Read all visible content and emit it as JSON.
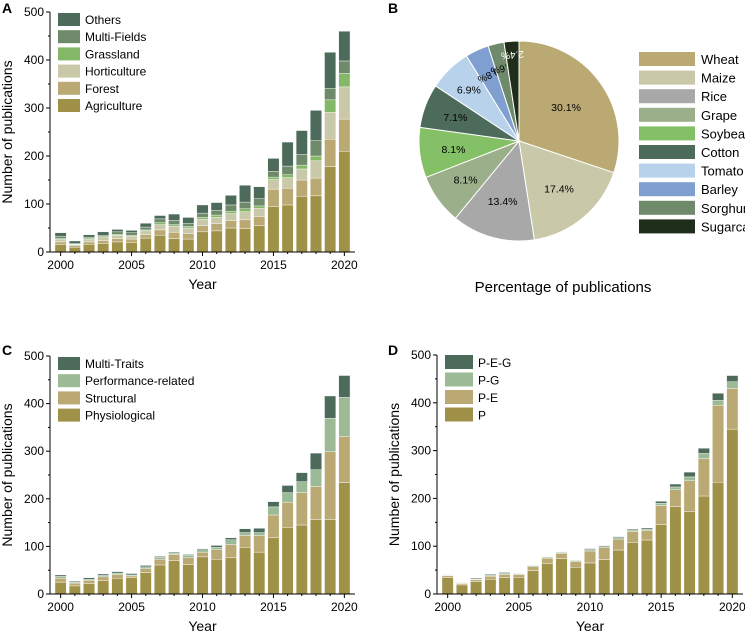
{
  "chart_data": [
    {
      "panel": "A",
      "type": "bar",
      "stacked": true,
      "xlabel": "Year",
      "ylabel": "Number of publications",
      "ylim": [
        0,
        500
      ],
      "yticks": [
        0,
        100,
        200,
        300,
        400,
        500
      ],
      "xticks": [
        "2000",
        "2005",
        "2010",
        "2015",
        "2020"
      ],
      "categories": [
        "2000",
        "2001",
        "2002",
        "2003",
        "2004",
        "2005",
        "2006",
        "2007",
        "2008",
        "2009",
        "2010",
        "2011",
        "2012",
        "2013",
        "2014",
        "2015",
        "2016",
        "2017",
        "2018",
        "2019",
        "2020"
      ],
      "legend_position": "top-left",
      "series": [
        {
          "name": "Agriculture",
          "color": "#a09148",
          "values": [
            15,
            10,
            16,
            18,
            21,
            20,
            29,
            35,
            28,
            27,
            42,
            44,
            50,
            49,
            55,
            95,
            98,
            116,
            117,
            178,
            210
          ]
        },
        {
          "name": "Forest",
          "color": "#bba974",
          "values": [
            6,
            3,
            5,
            6,
            7,
            7,
            7,
            11,
            13,
            11,
            13,
            15,
            15,
            18,
            19,
            36,
            35,
            34,
            37,
            57,
            67
          ]
        },
        {
          "name": "Horticulture",
          "color": "#c9c8a8",
          "values": [
            5,
            2,
            5,
            6,
            7,
            6,
            8,
            11,
            13,
            12,
            13,
            13,
            15,
            17,
            17,
            20,
            22,
            23,
            36,
            56,
            67
          ]
        },
        {
          "name": "Grassland",
          "color": "#84b866",
          "values": [
            2,
            1,
            2,
            2,
            2,
            2,
            2,
            4,
            3,
            3,
            4,
            5,
            5,
            6,
            5,
            5,
            6,
            8,
            10,
            26,
            28
          ]
        },
        {
          "name": "Multi-Fields",
          "color": "#6e8a6a",
          "values": [
            5,
            2,
            3,
            3,
            5,
            5,
            6,
            8,
            9,
            7,
            9,
            10,
            13,
            14,
            15,
            12,
            18,
            22,
            32,
            24,
            26
          ]
        },
        {
          "name": "Others",
          "color": "#4d6b5a",
          "values": [
            7,
            5,
            5,
            7,
            5,
            5,
            8,
            7,
            13,
            12,
            17,
            16,
            20,
            35,
            25,
            27,
            50,
            50,
            63,
            75,
            62
          ]
        }
      ]
    },
    {
      "panel": "B",
      "type": "pie",
      "title": "Percentage of publications",
      "legend_position": "right",
      "slices": [
        {
          "label": "Wheat",
          "value": 30.1,
          "text": "30.1%",
          "color": "#bba974"
        },
        {
          "label": "Maize",
          "value": 17.4,
          "text": "17.4%",
          "color": "#c9c8a8"
        },
        {
          "label": "Rice",
          "value": 13.4,
          "text": "13.4%",
          "color": "#a8a8a8"
        },
        {
          "label": "Grape",
          "value": 8.1,
          "text": "8.1%",
          "color": "#9aaf8a"
        },
        {
          "label": "Soybean",
          "value": 8.1,
          "text": "8.1%",
          "color": "#84c066"
        },
        {
          "label": "Cotton",
          "value": 7.1,
          "text": "7.1%",
          "color": "#4d6b5a"
        },
        {
          "label": "Tomato",
          "value": 6.9,
          "text": "6.9%",
          "color": "#b7d2ea"
        },
        {
          "label": "Barley",
          "value": 3.8,
          "text": "3.8%",
          "color": "#7e9fcf"
        },
        {
          "label": "Sorghum",
          "value": 2.6,
          "text": "2.6%",
          "color": "#6e8a6a"
        },
        {
          "label": "Sugarcane",
          "value": 2.4,
          "text": "2.4%",
          "color": "#1e2e1a"
        }
      ]
    },
    {
      "panel": "C",
      "type": "bar",
      "stacked": true,
      "xlabel": "Year",
      "ylabel": "Number of publications",
      "ylim": [
        0,
        500
      ],
      "yticks": [
        0,
        100,
        200,
        300,
        400,
        500
      ],
      "xticks": [
        "2000",
        "2005",
        "2010",
        "2015",
        "2020"
      ],
      "categories": [
        "2000",
        "2001",
        "2002",
        "2003",
        "2004",
        "2005",
        "2006",
        "2007",
        "2008",
        "2009",
        "2010",
        "2011",
        "2012",
        "2013",
        "2014",
        "2015",
        "2016",
        "2017",
        "2018",
        "2019",
        "2020"
      ],
      "legend_position": "top-left",
      "series": [
        {
          "name": "Physiological",
          "color": "#a09148",
          "values": [
            25,
            17,
            22,
            28,
            33,
            34,
            45,
            61,
            70,
            62,
            78,
            73,
            76,
            98,
            88,
            118,
            140,
            145,
            156,
            156,
            234
          ]
        },
        {
          "name": "Structural",
          "color": "#bba974",
          "values": [
            8,
            6,
            7,
            8,
            8,
            4,
            8,
            12,
            13,
            14,
            10,
            20,
            28,
            25,
            35,
            48,
            53,
            68,
            70,
            143,
            97
          ]
        },
        {
          "name": "Performance-related",
          "color": "#9dba96",
          "values": [
            4,
            2,
            2,
            3,
            3,
            2,
            4,
            4,
            3,
            5,
            5,
            5,
            10,
            6,
            6,
            17,
            20,
            23,
            35,
            70,
            82
          ]
        },
        {
          "name": "Multi-Traits",
          "color": "#4d6b5a",
          "values": [
            3,
            2,
            3,
            3,
            3,
            3,
            3,
            2,
            2,
            2,
            2,
            4,
            4,
            8,
            9,
            11,
            15,
            19,
            35,
            47,
            46
          ]
        }
      ]
    },
    {
      "panel": "D",
      "type": "bar",
      "stacked": true,
      "xlabel": "Year",
      "ylabel": "Number of publications",
      "ylim": [
        0,
        500
      ],
      "yticks": [
        0,
        100,
        200,
        300,
        400,
        500
      ],
      "xticks": [
        "2000",
        "2005",
        "2010",
        "2015",
        "2020"
      ],
      "categories": [
        "2000",
        "2001",
        "2002",
        "2003",
        "2004",
        "2005",
        "2006",
        "2007",
        "2008",
        "2009",
        "2010",
        "2011",
        "2012",
        "2013",
        "2014",
        "2015",
        "2016",
        "2017",
        "2018",
        "2019",
        "2020"
      ],
      "legend_position": "top-left",
      "series": [
        {
          "name": "P",
          "color": "#a09148",
          "values": [
            34,
            19,
            26,
            31,
            34,
            35,
            49,
            64,
            74,
            56,
            65,
            72,
            92,
            108,
            113,
            145,
            183,
            172,
            205,
            234,
            345
          ]
        },
        {
          "name": "P-E",
          "color": "#bba974",
          "values": [
            4,
            3,
            4,
            6,
            7,
            6,
            8,
            11,
            11,
            12,
            25,
            25,
            23,
            23,
            20,
            40,
            35,
            65,
            78,
            161,
            85
          ]
        },
        {
          "name": "P-G",
          "color": "#9dba96",
          "values": [
            1,
            1,
            1,
            2,
            2,
            1,
            2,
            2,
            2,
            2,
            3,
            2,
            3,
            3,
            2,
            5,
            6,
            8,
            11,
            10,
            14
          ]
        },
        {
          "name": "P-E-G",
          "color": "#4d6b5a",
          "values": [
            1,
            1,
            2,
            2,
            2,
            1,
            1,
            1,
            1,
            1,
            2,
            2,
            2,
            2,
            3,
            4,
            6,
            10,
            11,
            15,
            13
          ]
        }
      ]
    }
  ],
  "panels": {
    "a_label": "A",
    "b_label": "B",
    "c_label": "C",
    "d_label": "D"
  }
}
